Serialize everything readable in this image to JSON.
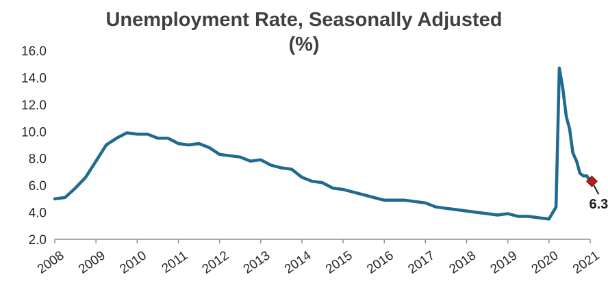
{
  "chart_data": {
    "type": "line",
    "title_line1": "Unemployment Rate, Seasonally Adjusted",
    "title_line2": "(%)",
    "xlabel": "",
    "ylabel": "",
    "ylim": [
      2.0,
      16.0
    ],
    "xlim": [
      2008.0,
      2021.0
    ],
    "y_ticks": [
      "2.0",
      "4.0",
      "6.0",
      "8.0",
      "10.0",
      "12.0",
      "14.0",
      "16.0"
    ],
    "x_ticks": [
      "2008",
      "2009",
      "2010",
      "2011",
      "2012",
      "2013",
      "2014",
      "2015",
      "2016",
      "2017",
      "2018",
      "2019",
      "2020",
      "2021"
    ],
    "grid": false,
    "legend": "none",
    "line_color": "#1f6a8f",
    "marker_color": "#b01e1e",
    "annotation": {
      "x": 2021.04,
      "y": 6.3,
      "label": "6.3"
    },
    "series": [
      {
        "x": [
          2008.0,
          2008.25,
          2008.5,
          2008.75,
          2009.0,
          2009.25,
          2009.5,
          2009.75,
          2010.0,
          2010.25,
          2010.5,
          2010.75,
          2011.0,
          2011.25,
          2011.5,
          2011.75,
          2012.0,
          2012.25,
          2012.5,
          2012.75,
          2013.0,
          2013.25,
          2013.5,
          2013.75,
          2014.0,
          2014.25,
          2014.5,
          2014.75,
          2015.0,
          2015.25,
          2015.5,
          2015.75,
          2016.0,
          2016.25,
          2016.5,
          2016.75,
          2017.0,
          2017.25,
          2017.5,
          2017.75,
          2018.0,
          2018.25,
          2018.5,
          2018.75,
          2019.0,
          2019.25,
          2019.5,
          2019.75,
          2020.0,
          2020.17,
          2020.25,
          2020.33,
          2020.42,
          2020.5,
          2020.58,
          2020.67,
          2020.75,
          2020.83,
          2020.92,
          2021.0,
          2021.04
        ],
        "values": [
          5.0,
          5.1,
          5.8,
          6.6,
          7.8,
          9.0,
          9.5,
          9.9,
          9.8,
          9.8,
          9.5,
          9.5,
          9.1,
          9.0,
          9.1,
          8.8,
          8.3,
          8.2,
          8.1,
          7.8,
          7.9,
          7.5,
          7.3,
          7.2,
          6.6,
          6.3,
          6.2,
          5.8,
          5.7,
          5.5,
          5.3,
          5.1,
          4.9,
          4.9,
          4.9,
          4.8,
          4.7,
          4.4,
          4.3,
          4.2,
          4.1,
          4.0,
          3.9,
          3.8,
          3.9,
          3.7,
          3.7,
          3.6,
          3.5,
          4.4,
          14.7,
          13.3,
          11.1,
          10.2,
          8.4,
          7.8,
          6.9,
          6.7,
          6.7,
          6.3,
          6.3
        ]
      }
    ]
  }
}
